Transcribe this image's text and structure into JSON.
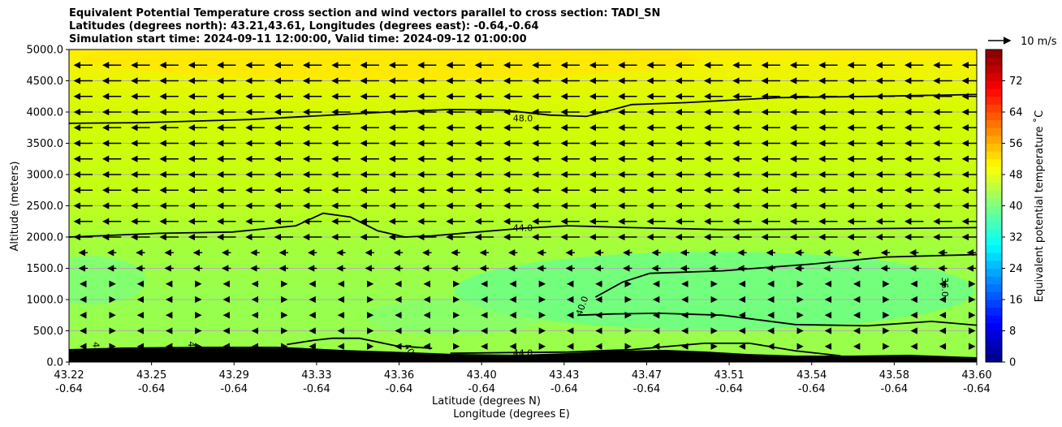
{
  "chart_data": {
    "type": "heatmap",
    "title_lines": [
      "Equivalent Potential Temperature cross section and wind vectors parallel to cross section: TADI_SN",
      "Latitudes (degrees north): 43.21,43.61, Longitudes (degrees east): -0.64,-0.64",
      "Simulation start time: 2024-09-11 12:00:00, Valid time: 2024-09-12 01:00:00"
    ],
    "ylabel": "Altitude (meters)",
    "xlabel_lines": [
      "Latitude (degrees N)",
      "Longitude (degrees E)"
    ],
    "ylim": [
      0,
      5000
    ],
    "y_ticks": [
      "0.0",
      "500.0",
      "1000.0",
      "1500.0",
      "2000.0",
      "2500.0",
      "3000.0",
      "3500.0",
      "4000.0",
      "4500.0",
      "5000.0"
    ],
    "x_ticks_lat": [
      "43.22",
      "43.25",
      "43.29",
      "43.33",
      "43.36",
      "43.40",
      "43.43",
      "43.47",
      "43.51",
      "43.54",
      "43.58",
      "43.60"
    ],
    "x_ticks_lon": [
      "-0.64",
      "-0.64",
      "-0.64",
      "-0.64",
      "-0.64",
      "-0.64",
      "-0.64",
      "-0.64",
      "-0.64",
      "-0.64",
      "-0.64",
      "-0.64"
    ],
    "grid": "horizontal",
    "colorbar": {
      "label": "Equivalent potential temperature ˚C",
      "ticks": [
        "0",
        "8",
        "16",
        "24",
        "32",
        "40",
        "48",
        "56",
        "64",
        "72"
      ],
      "range": [
        0,
        80
      ],
      "colormap": "jet"
    },
    "quiver_key": "10 m/s",
    "contour_labels": [
      "48.0",
      "44.0",
      "44.0",
      "40.0",
      "36.0",
      "44",
      "44",
      "40"
    ],
    "contours": [
      {
        "level": 48.0,
        "x": [
          0,
          0.08,
          0.2,
          0.35,
          0.42,
          0.48,
          0.53,
          0.57,
          0.62,
          0.68,
          0.78,
          0.88,
          1.0
        ],
        "y": [
          3820,
          3830,
          3880,
          4000,
          4040,
          4030,
          3950,
          3930,
          4120,
          4150,
          4230,
          4250,
          4280
        ]
      },
      {
        "level": 44.0,
        "x": [
          0,
          0.1,
          0.18,
          0.25,
          0.28,
          0.31,
          0.34,
          0.37,
          0.4,
          0.45,
          0.5,
          0.55,
          0.62,
          0.72,
          0.85,
          1.0
        ],
        "y": [
          2000,
          2060,
          2080,
          2180,
          2380,
          2320,
          2100,
          2000,
          2020,
          2080,
          2140,
          2180,
          2150,
          2120,
          2130,
          2150
        ]
      },
      {
        "level": 40.0,
        "x": [
          0.58,
          0.61,
          0.64,
          0.72,
          0.82,
          0.9,
          1.0
        ],
        "y": [
          1040,
          1280,
          1420,
          1460,
          1570,
          1680,
          1720
        ]
      },
      {
        "level": 40.0,
        "x": [
          0.56,
          0.6,
          0.65,
          0.72,
          0.8,
          0.88,
          0.95,
          1.0
        ],
        "y": [
          750,
          770,
          780,
          750,
          600,
          580,
          650,
          590
        ]
      },
      {
        "level": 44.0,
        "x": [
          0.24,
          0.27,
          0.29,
          0.32,
          0.36,
          0.4
        ],
        "y": [
          280,
          350,
          380,
          380,
          260,
          220
        ]
      },
      {
        "level": 44.0,
        "x": [
          0.42,
          0.48,
          0.55,
          0.62,
          0.7,
          0.75,
          0.8,
          0.85
        ],
        "y": [
          140,
          150,
          160,
          200,
          300,
          300,
          180,
          100
        ]
      }
    ]
  }
}
